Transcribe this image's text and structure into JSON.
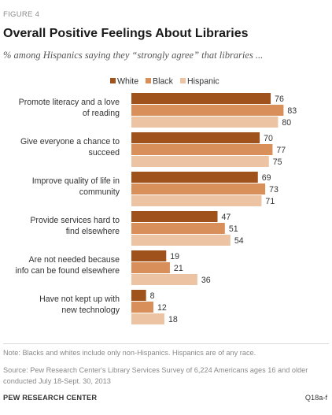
{
  "figure_label": "FIGURE 4",
  "note": "Note: Blacks and whites include only non-Hispanics. Hispanics are of any race.",
  "source": "Source: Pew Research Center's Library Services Survey of 6,224 Americans ages 16 and older conducted July 18-Sept. 30, 2013",
  "footer": {
    "organization": "PEW RESEARCH CENTER",
    "question_id": "Q18a-f"
  },
  "colors": {
    "White": "#a0521c",
    "Black": "#d98f5a",
    "Hispanic": "#ecc4a3"
  },
  "chart_data": {
    "type": "bar",
    "orientation": "horizontal",
    "title": "Overall Positive Feelings About Libraries",
    "subtitle": "% among Hispanics saying they “strongly agree” that libraries ...",
    "legend_position": "top",
    "xlim": [
      0,
      100
    ],
    "grid": false,
    "categories": [
      [
        "Promote literacy and a love",
        "of reading"
      ],
      [
        "Give everyone a chance to",
        "succeed"
      ],
      [
        "Improve quality of life in",
        "community"
      ],
      [
        "Provide services hard to",
        "find elsewhere"
      ],
      [
        "Are not needed because",
        "info can be found elsewhere"
      ],
      [
        "Have not kept up with",
        "new technology"
      ]
    ],
    "series": [
      {
        "name": "White",
        "values": [
          76,
          70,
          69,
          47,
          19,
          8
        ]
      },
      {
        "name": "Black",
        "values": [
          83,
          77,
          73,
          51,
          21,
          12
        ]
      },
      {
        "name": "Hispanic",
        "values": [
          80,
          75,
          71,
          54,
          36,
          18
        ]
      }
    ]
  }
}
